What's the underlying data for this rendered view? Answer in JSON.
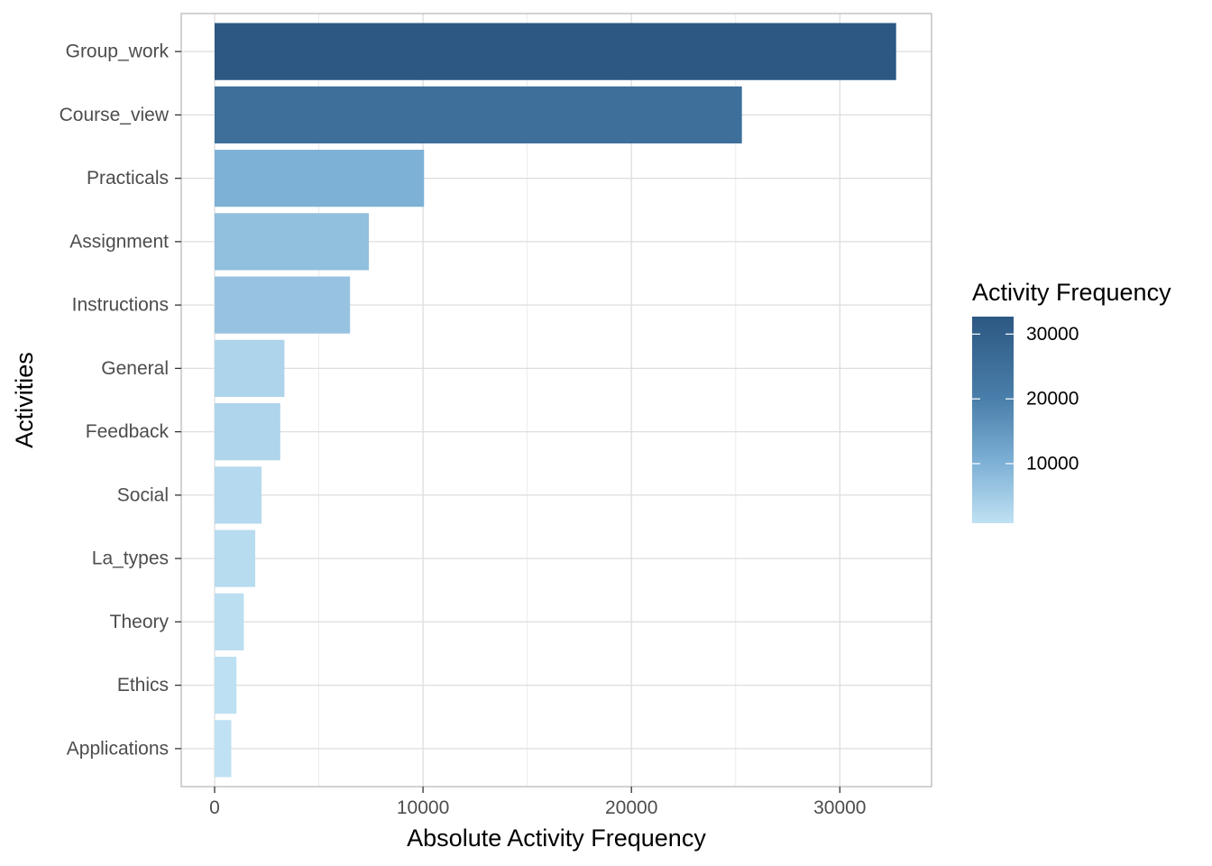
{
  "chart_data": {
    "type": "bar",
    "orientation": "horizontal",
    "xlabel": "Absolute Activity Frequency",
    "ylabel": "Activities",
    "categories": [
      "Group_work",
      "Course_view",
      "Practicals",
      "Assignment",
      "Instructions",
      "General",
      "Feedback",
      "Social",
      "La_types",
      "Theory",
      "Ethics",
      "Applications"
    ],
    "values": [
      32700,
      25300,
      10050,
      7400,
      6500,
      3350,
      3150,
      2250,
      1950,
      1400,
      1050,
      800
    ],
    "xlim": [
      -1600,
      34400
    ],
    "x_ticks": [
      0,
      10000,
      20000,
      30000
    ],
    "x_tick_labels": [
      "0",
      "10000",
      "20000",
      "30000"
    ],
    "grid": true,
    "legend": {
      "title": "Activity Frequency",
      "type": "colorbar",
      "placement": "right",
      "range": [
        800,
        32700
      ],
      "breaks": [
        10000,
        20000,
        30000
      ],
      "labels": [
        "10000",
        "20000",
        "30000"
      ],
      "color_low": "#bfe1f3",
      "color_mid": "#7eb1d6",
      "color_high": "#2c5883"
    },
    "colors": {
      "panel_border": "#b3b3b3",
      "grid_major": "#dedede",
      "grid_minor": "#ececec"
    }
  }
}
